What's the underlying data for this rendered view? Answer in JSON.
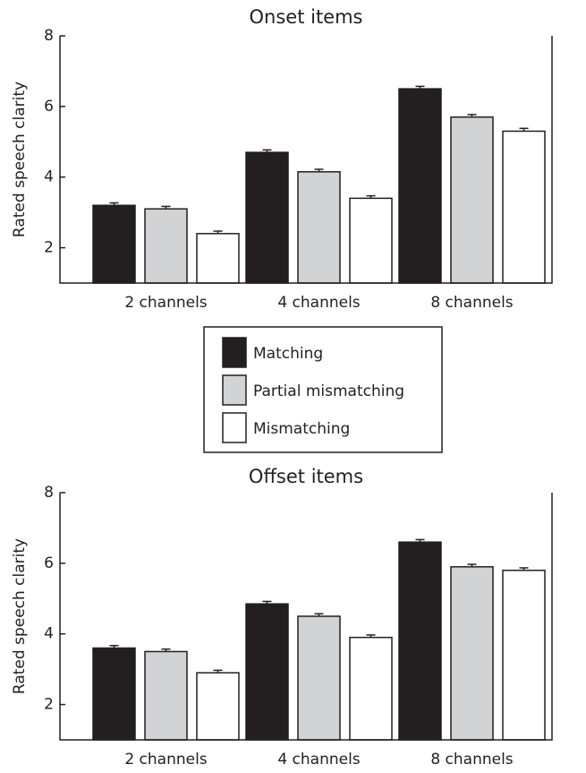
{
  "chart_data": [
    {
      "type": "bar",
      "title": "Onset items",
      "y_label": "Rated speech clarity",
      "categories": [
        "2 channels",
        "4 channels",
        "8 channels"
      ],
      "series": [
        {
          "name": "Matching",
          "color": "#231f20",
          "values": [
            3.2,
            4.7,
            6.5
          ],
          "errors": [
            0.07,
            0.07,
            0.07
          ]
        },
        {
          "name": "Partial mismatching",
          "color": "#d1d3d4",
          "values": [
            3.1,
            4.15,
            5.7
          ],
          "errors": [
            0.07,
            0.07,
            0.07
          ]
        },
        {
          "name": "Mismatching",
          "color": "#ffffff",
          "values": [
            2.4,
            3.4,
            5.3
          ],
          "errors": [
            0.07,
            0.07,
            0.08
          ]
        }
      ],
      "ylim": [
        1,
        8
      ],
      "yticks": [
        2,
        4,
        6,
        8
      ]
    },
    {
      "type": "bar",
      "title": "Offset items",
      "y_label": "Rated speech clarity",
      "categories": [
        "2 channels",
        "4 channels",
        "8 channels"
      ],
      "series": [
        {
          "name": "Matching",
          "color": "#231f20",
          "values": [
            3.6,
            4.85,
            6.6
          ],
          "errors": [
            0.07,
            0.07,
            0.07
          ]
        },
        {
          "name": "Partial mismatching",
          "color": "#d1d3d4",
          "values": [
            3.5,
            4.5,
            5.9
          ],
          "errors": [
            0.07,
            0.07,
            0.07
          ]
        },
        {
          "name": "Mismatching",
          "color": "#ffffff",
          "values": [
            2.9,
            3.9,
            5.8
          ],
          "errors": [
            0.07,
            0.07,
            0.07
          ]
        }
      ],
      "ylim": [
        1,
        8
      ],
      "yticks": [
        2,
        4,
        6,
        8
      ]
    }
  ]
}
